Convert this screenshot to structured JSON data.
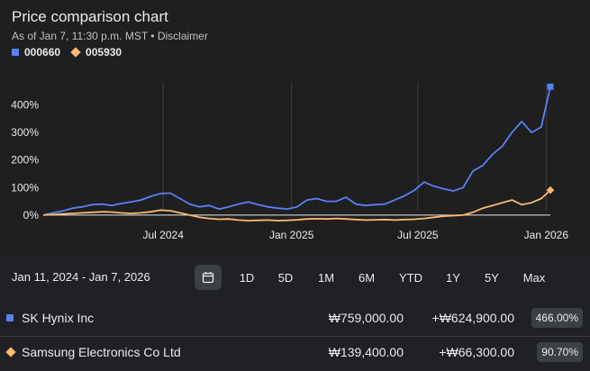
{
  "header": {
    "title": "Price comparison chart",
    "subtitle": "As of Jan 7, 11:30 p.m. MST • Disclaimer",
    "legend": [
      {
        "label": "000660",
        "color": "#5b7ff5",
        "shape": "square"
      },
      {
        "label": "005930",
        "color": "#fdb872",
        "shape": "diamond"
      }
    ]
  },
  "chart_data": {
    "type": "line",
    "y_ticks": [
      "400%",
      "300%",
      "200%",
      "100%",
      "0%"
    ],
    "y_tick_values": [
      400,
      300,
      200,
      100,
      0
    ],
    "ylim": [
      -20,
      480
    ],
    "x_ticks": [
      "Jul 2024",
      "Jan 2025",
      "Jul 2025",
      "Jan 2026"
    ],
    "x_tick_values": [
      "2024-07-01",
      "2025-01-01",
      "2025-07-01",
      "2026-01-01"
    ],
    "xlim": [
      "2024-01-11",
      "2026-01-07"
    ],
    "grid": "vertical",
    "series": [
      {
        "name": "000660",
        "color": "#5b7ff5",
        "marker": "square",
        "x": [
          "2024-01-11",
          "2024-01-25",
          "2024-02-08",
          "2024-02-22",
          "2024-03-07",
          "2024-03-21",
          "2024-04-04",
          "2024-04-18",
          "2024-05-02",
          "2024-05-16",
          "2024-05-30",
          "2024-06-13",
          "2024-06-27",
          "2024-07-11",
          "2024-07-25",
          "2024-08-08",
          "2024-08-22",
          "2024-09-05",
          "2024-09-19",
          "2024-10-03",
          "2024-10-17",
          "2024-10-31",
          "2024-11-14",
          "2024-11-28",
          "2024-12-12",
          "2024-12-26",
          "2025-01-09",
          "2025-01-23",
          "2025-02-06",
          "2025-02-20",
          "2025-03-06",
          "2025-03-20",
          "2025-04-03",
          "2025-04-17",
          "2025-05-01",
          "2025-05-15",
          "2025-05-29",
          "2025-06-12",
          "2025-06-26",
          "2025-07-10",
          "2025-07-24",
          "2025-08-07",
          "2025-08-21",
          "2025-09-04",
          "2025-09-18",
          "2025-10-02",
          "2025-10-16",
          "2025-10-30",
          "2025-11-13",
          "2025-11-27",
          "2025-12-11",
          "2025-12-25",
          "2026-01-07"
        ],
        "values": [
          0,
          8,
          15,
          25,
          30,
          38,
          40,
          35,
          42,
          48,
          55,
          68,
          78,
          80,
          60,
          40,
          30,
          35,
          22,
          30,
          40,
          48,
          38,
          30,
          25,
          22,
          30,
          55,
          60,
          50,
          50,
          65,
          40,
          35,
          38,
          40,
          55,
          70,
          90,
          120,
          105,
          95,
          88,
          100,
          160,
          180,
          220,
          250,
          300,
          340,
          300,
          320,
          466
        ]
      },
      {
        "name": "005930",
        "color": "#fdb872",
        "marker": "diamond",
        "x": [
          "2024-01-11",
          "2024-01-25",
          "2024-02-08",
          "2024-02-22",
          "2024-03-07",
          "2024-03-21",
          "2024-04-04",
          "2024-04-18",
          "2024-05-02",
          "2024-05-16",
          "2024-05-30",
          "2024-06-13",
          "2024-06-27",
          "2024-07-11",
          "2024-07-25",
          "2024-08-08",
          "2024-08-22",
          "2024-09-05",
          "2024-09-19",
          "2024-10-03",
          "2024-10-17",
          "2024-10-31",
          "2024-11-14",
          "2024-11-28",
          "2024-12-12",
          "2024-12-26",
          "2025-01-09",
          "2025-01-23",
          "2025-02-06",
          "2025-02-20",
          "2025-03-06",
          "2025-03-20",
          "2025-04-03",
          "2025-04-17",
          "2025-05-01",
          "2025-05-15",
          "2025-05-29",
          "2025-06-12",
          "2025-06-26",
          "2025-07-10",
          "2025-07-24",
          "2025-08-07",
          "2025-08-21",
          "2025-09-04",
          "2025-09-18",
          "2025-10-02",
          "2025-10-16",
          "2025-10-30",
          "2025-11-13",
          "2025-11-27",
          "2025-12-11",
          "2025-12-25",
          "2026-01-07"
        ],
        "values": [
          0,
          2,
          4,
          6,
          8,
          10,
          12,
          11,
          8,
          6,
          8,
          12,
          18,
          16,
          8,
          0,
          -8,
          -12,
          -15,
          -14,
          -18,
          -20,
          -19,
          -18,
          -20,
          -19,
          -17,
          -14,
          -13,
          -14,
          -12,
          -14,
          -16,
          -18,
          -17,
          -16,
          -18,
          -16,
          -15,
          -12,
          -8,
          -4,
          -2,
          0,
          10,
          25,
          35,
          45,
          55,
          38,
          45,
          60,
          90.7
        ]
      }
    ]
  },
  "range_bar": {
    "date_range": "Jan 11, 2024 - Jan 7, 2026",
    "calendar_icon": "calendar-icon",
    "buttons": [
      "1D",
      "5D",
      "1M",
      "6M",
      "YTD",
      "1Y",
      "5Y",
      "Max"
    ]
  },
  "table": {
    "rows": [
      {
        "name": "SK Hynix Inc",
        "price": "₩759,000.00",
        "change": "+₩624,900.00",
        "pct": "466.00%",
        "color": "#5b7ff5",
        "marker": "square"
      },
      {
        "name": "Samsung Electronics Co Ltd",
        "price": "₩139,400.00",
        "change": "+₩66,300.00",
        "pct": "90.70%",
        "color": "#fdb872",
        "marker": "diamond"
      }
    ]
  }
}
